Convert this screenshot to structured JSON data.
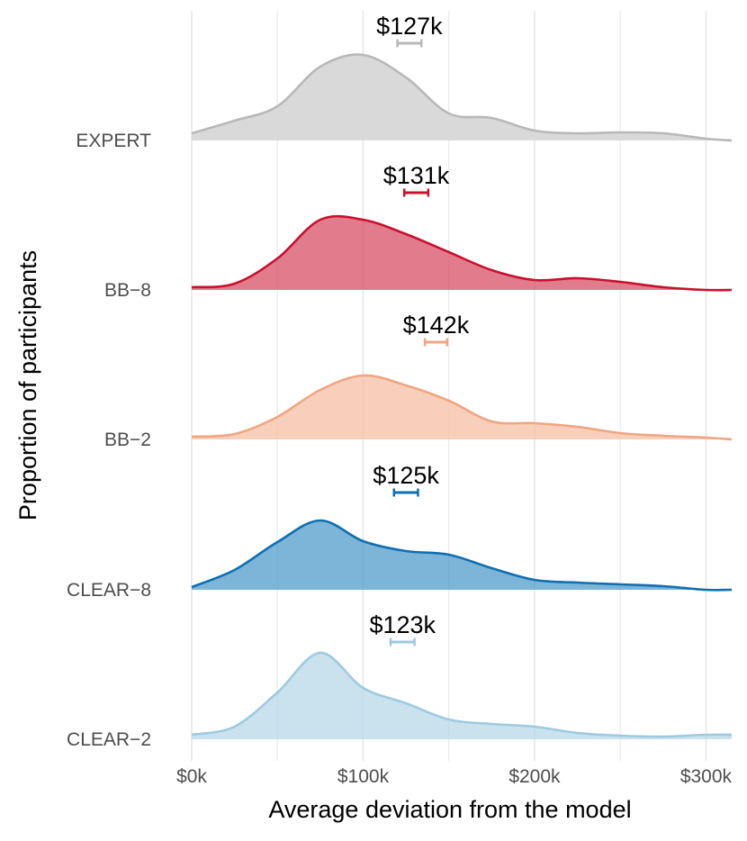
{
  "chart_data": {
    "type": "ridgeline",
    "title": "",
    "xlabel": "Average deviation from the model",
    "ylabel": "Proportion of participants",
    "xlim": [
      0,
      315
    ],
    "x_ticks": [
      0,
      100,
      200,
      300
    ],
    "x_tick_labels": [
      "$0k",
      "$100k",
      "$200k",
      "$300k"
    ],
    "grid": true,
    "x": [
      0,
      25,
      50,
      75,
      100,
      125,
      150,
      175,
      200,
      225,
      250,
      275,
      300,
      315
    ],
    "series": [
      {
        "name": "EXPERT",
        "color": "#b8b8b8",
        "fill": "#d9d9d9",
        "fill_opacity": 1,
        "mean": 127,
        "mean_label": "$127k",
        "ci": [
          120,
          134
        ],
        "density": [
          0.08,
          0.22,
          0.38,
          0.82,
          0.95,
          0.7,
          0.3,
          0.25,
          0.11,
          0.08,
          0.09,
          0.08,
          0.02,
          0.0
        ]
      },
      {
        "name": "BB−8",
        "color": "#c8102e",
        "fill": "#d64a60",
        "fill_opacity": 0.72,
        "mean": 131,
        "mean_label": "$131k",
        "ci": [
          124,
          138
        ],
        "density": [
          0.03,
          0.07,
          0.35,
          0.78,
          0.78,
          0.62,
          0.42,
          0.22,
          0.11,
          0.13,
          0.09,
          0.03,
          0.0,
          0.0
        ]
      },
      {
        "name": "BB−2",
        "color": "#f1a582",
        "fill": "#f6c1a8",
        "fill_opacity": 0.78,
        "mean": 142,
        "mean_label": "$142k",
        "ci": [
          136,
          149
        ],
        "density": [
          0.03,
          0.06,
          0.25,
          0.55,
          0.71,
          0.6,
          0.43,
          0.2,
          0.18,
          0.14,
          0.07,
          0.04,
          0.02,
          0.0
        ]
      },
      {
        "name": "CLEAR−8",
        "color": "#0f6fb1",
        "fill": "#4a98c8",
        "fill_opacity": 0.72,
        "mean": 125,
        "mean_label": "$125k",
        "ci": [
          118,
          132
        ],
        "density": [
          0.03,
          0.22,
          0.53,
          0.77,
          0.54,
          0.43,
          0.39,
          0.24,
          0.11,
          0.08,
          0.06,
          0.04,
          0.0,
          0.0
        ]
      },
      {
        "name": "CLEAR−2",
        "color": "#9ecae1",
        "fill": "#b5d6e8",
        "fill_opacity": 0.72,
        "mean": 123,
        "mean_label": "$123k",
        "ci": [
          116,
          130
        ],
        "density": [
          0.05,
          0.14,
          0.52,
          0.96,
          0.57,
          0.4,
          0.22,
          0.17,
          0.14,
          0.07,
          0.04,
          0.03,
          0.05,
          0.05
        ]
      }
    ]
  }
}
